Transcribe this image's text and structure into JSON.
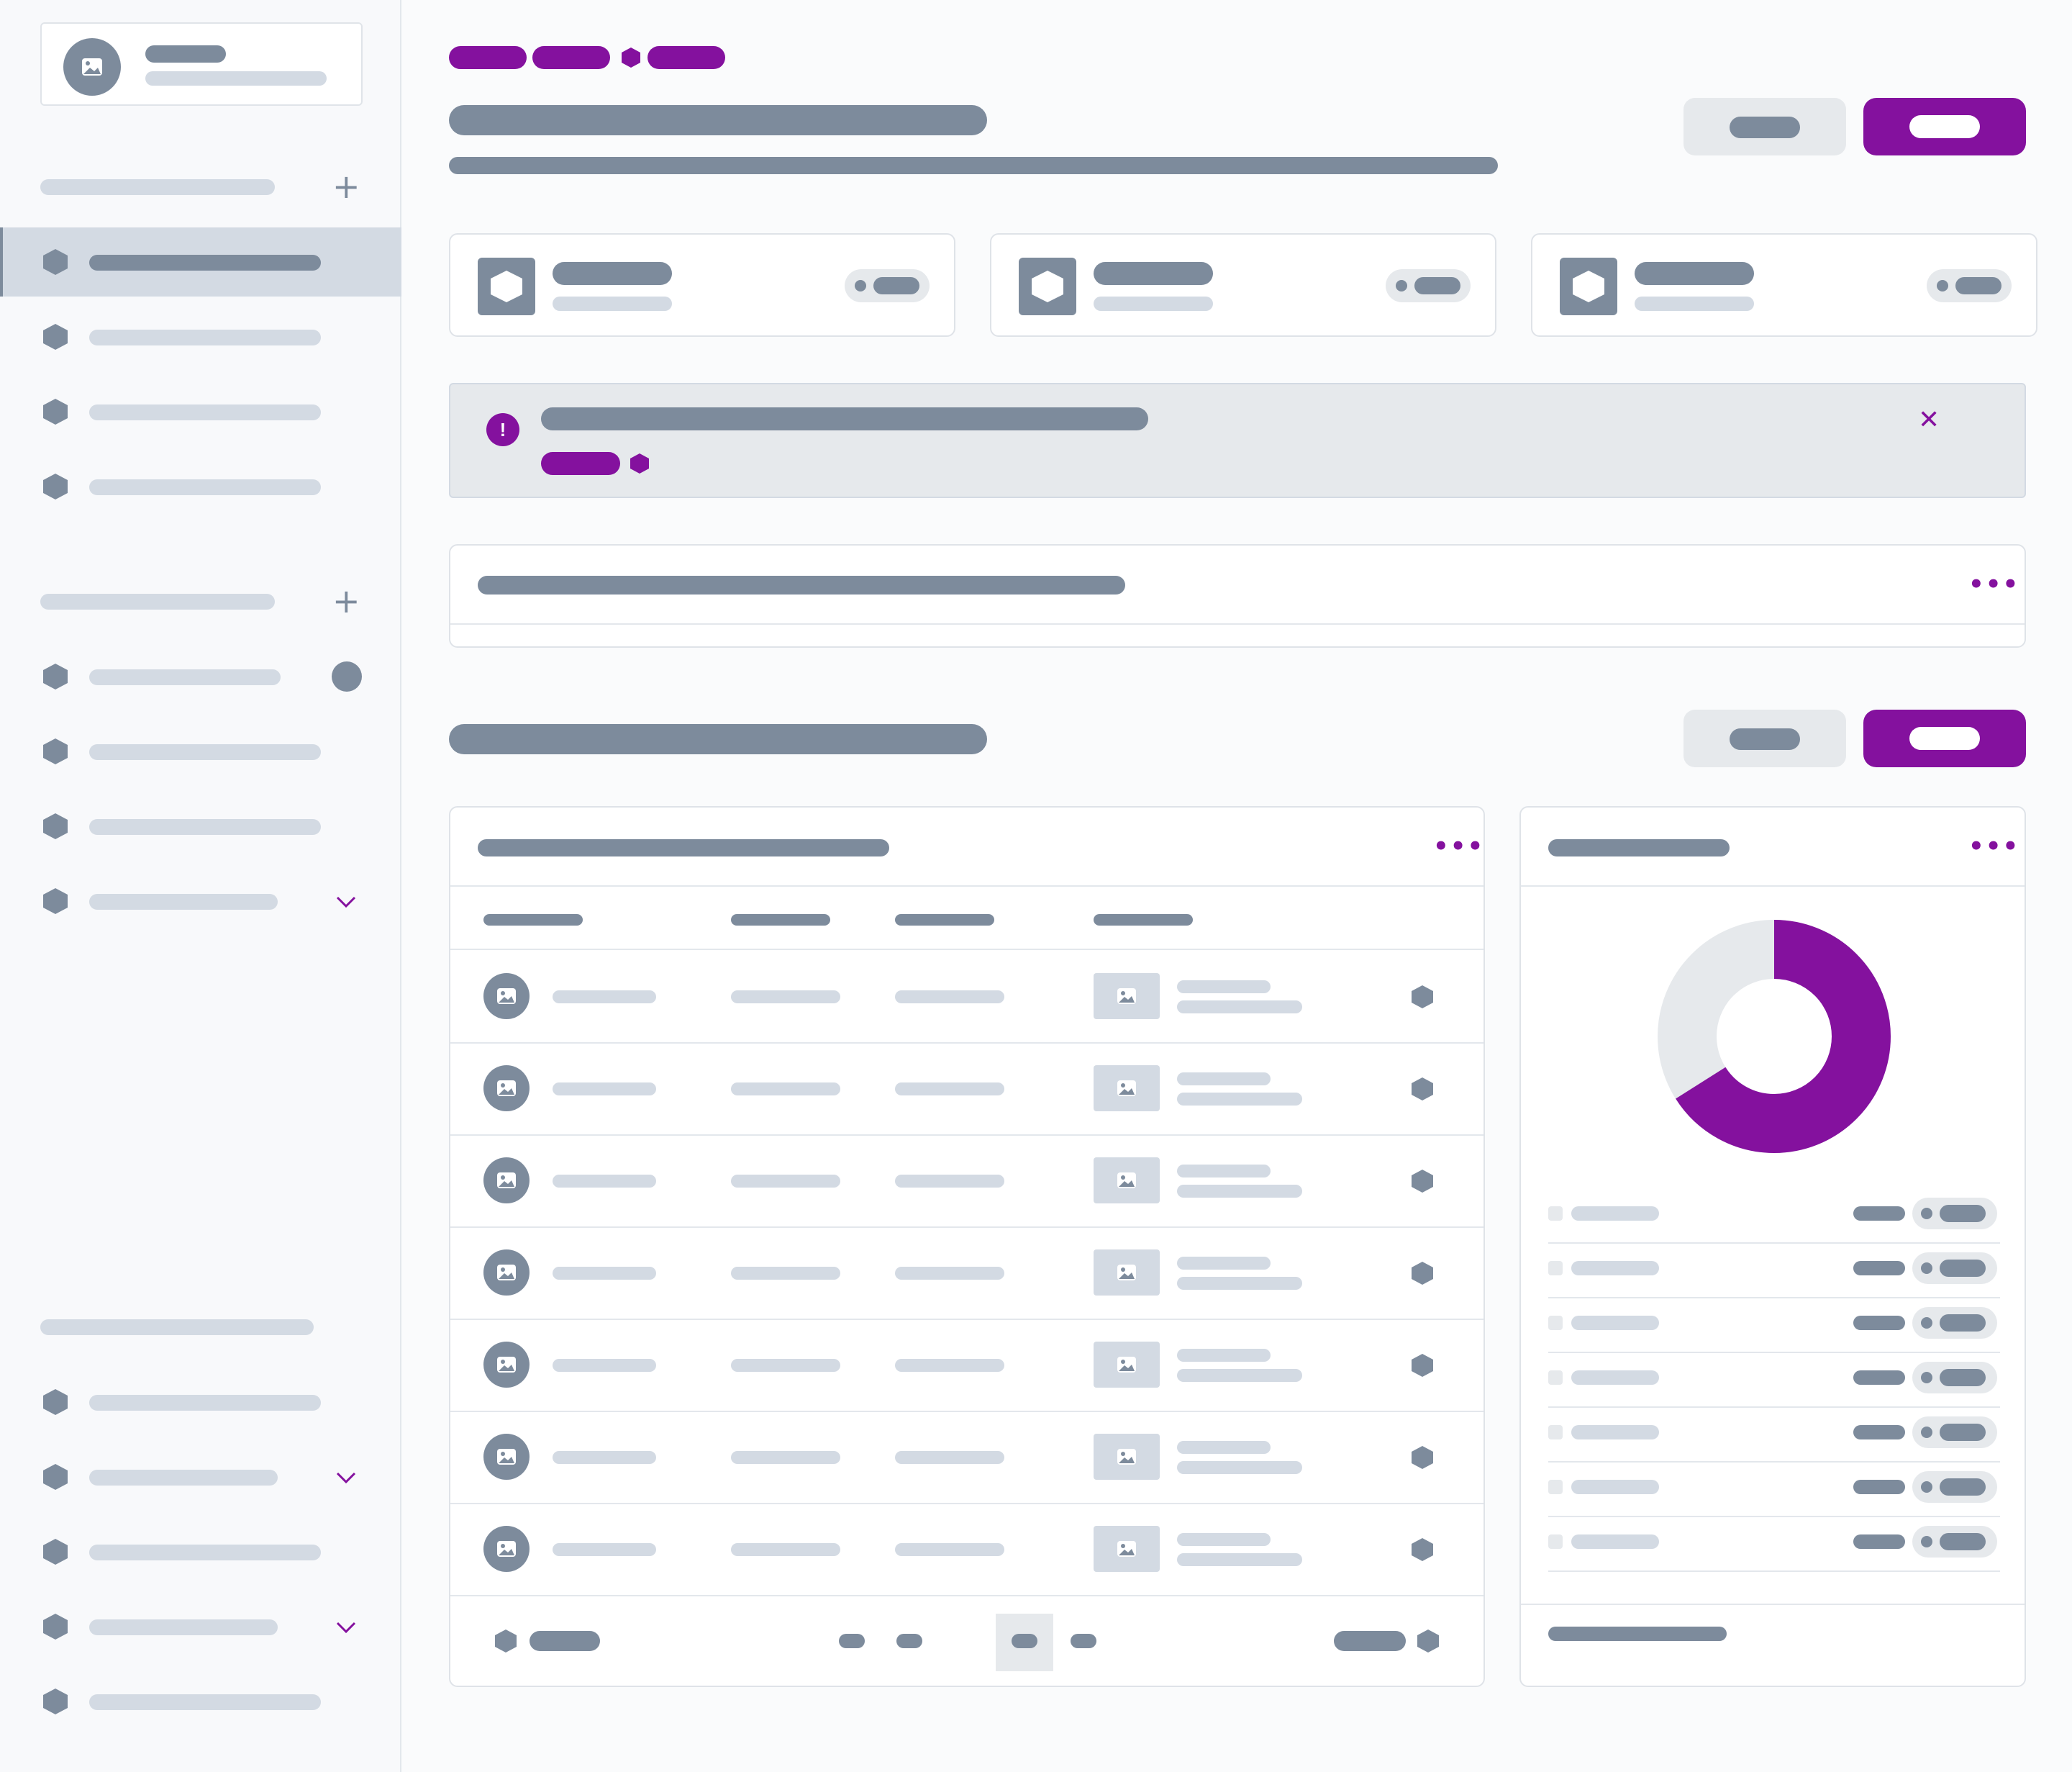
{
  "theme": {
    "accent": "#84119e",
    "placeholder_dark": "#7d8b9c",
    "placeholder_light": "#d3dae3",
    "surface_muted": "#e6e9ec"
  },
  "icons": {
    "brand": "image-icon",
    "nav": "hexagon-icon",
    "add": "plus-icon",
    "expand": "chevron-down-icon",
    "alert": "exclamation-circle-icon",
    "close": "close-icon",
    "more": "more-horizontal-icon",
    "row_avatar": "image-icon",
    "row_thumb": "image-icon",
    "row_action": "hexagon-icon"
  },
  "alert": {
    "icon_text": "!",
    "close_text": "✕"
  },
  "sidebar": {
    "add_glyph": "+",
    "expand_glyph": "⌄"
  },
  "donut": {
    "filled_fraction": 0.66
  },
  "table": {
    "row_count": 7
  },
  "legend": {
    "row_count": 7
  },
  "pagination": {
    "active_page_index": 2
  },
  "more_glyph": "•••"
}
